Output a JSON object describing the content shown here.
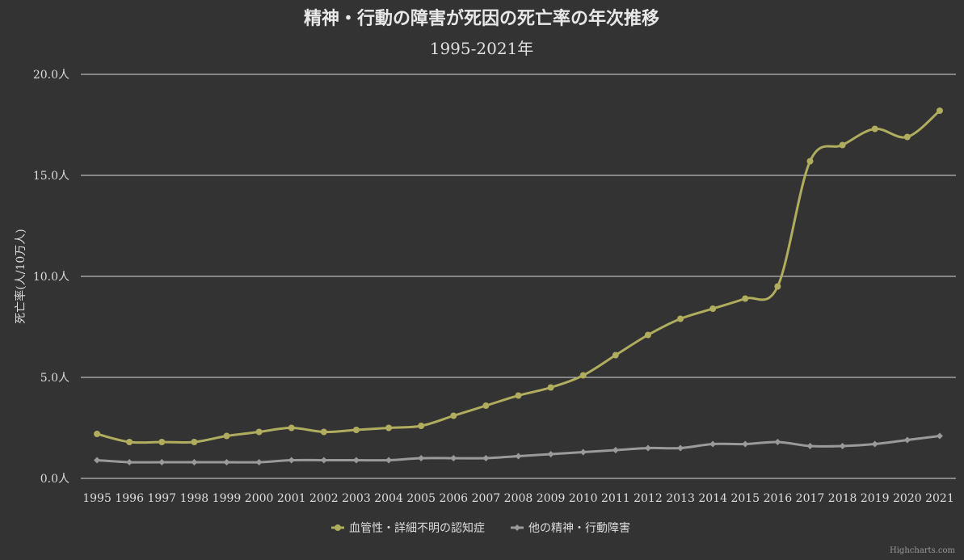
{
  "chart_data": {
    "type": "line",
    "title": "精神・行動の障害が死因の死亡率の年次推移",
    "subtitle": "1995-2021年",
    "ylabel": "死亡率(人/10万人)",
    "ylim": [
      0,
      20
    ],
    "yticks": [
      0,
      5,
      10,
      15,
      20
    ],
    "ytick_labels": [
      "0.0人",
      "5.0人",
      "10.0人",
      "15.0人",
      "20.0人"
    ],
    "x": [
      "1995",
      "1996",
      "1997",
      "1998",
      "1999",
      "2000",
      "2001",
      "2002",
      "2003",
      "2004",
      "2005",
      "2006",
      "2007",
      "2008",
      "2009",
      "2010",
      "2011",
      "2012",
      "2013",
      "2014",
      "2015",
      "2016",
      "2017",
      "2018",
      "2019",
      "2020",
      "2021"
    ],
    "grid": true,
    "legend_position": "bottom-center",
    "series": [
      {
        "name": "血管性・詳細不明の認知症",
        "color": "#b0ad5e",
        "marker": "circle",
        "values": [
          2.2,
          1.8,
          1.8,
          1.8,
          2.1,
          2.3,
          2.5,
          2.3,
          2.4,
          2.5,
          2.6,
          3.1,
          3.6,
          4.1,
          4.5,
          5.1,
          6.1,
          7.1,
          7.9,
          8.4,
          8.9,
          9.5,
          15.7,
          16.5,
          17.3,
          16.9,
          18.2
        ]
      },
      {
        "name": "他の精神・行動障害",
        "color": "#9a9a9a",
        "marker": "diamond",
        "values": [
          0.9,
          0.8,
          0.8,
          0.8,
          0.8,
          0.8,
          0.9,
          0.9,
          0.9,
          0.9,
          1.0,
          1.0,
          1.0,
          1.1,
          1.2,
          1.3,
          1.4,
          1.5,
          1.5,
          1.7,
          1.7,
          1.8,
          1.6,
          1.6,
          1.7,
          1.9,
          2.1
        ]
      }
    ]
  },
  "credits": "Highcharts.com"
}
